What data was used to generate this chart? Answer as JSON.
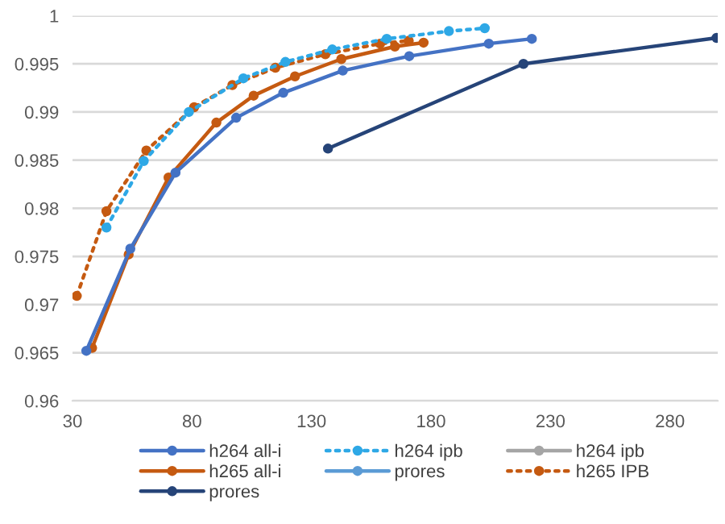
{
  "chart_data": {
    "type": "line",
    "xlim": [
      30,
      300
    ],
    "xticks": [
      30,
      80,
      130,
      180,
      230,
      280
    ],
    "ylim": [
      0.96,
      1
    ],
    "yticks": [
      0.96,
      0.965,
      0.97,
      0.975,
      0.98,
      0.985,
      0.99,
      0.995,
      1
    ],
    "grid": "y",
    "legend": "bottom",
    "marker": "circle",
    "series": [
      {
        "name": "h264 all-i",
        "color": "#4472c4",
        "line_style": "solid",
        "x": [
          35.8,
          54.2,
          73.1,
          98.5,
          118.2,
          143.1,
          170.9,
          204.2,
          222.2
        ],
        "values": [
          0.9652,
          0.9758,
          0.9837,
          0.9894,
          0.992,
          0.9943,
          0.9958,
          0.9971,
          0.9976
        ]
      },
      {
        "name": "h264 ipb",
        "color": "#2ea8e6",
        "line_style": "dotted",
        "x": [
          44.2,
          59.8,
          78.7,
          101.5,
          119.1,
          138.7,
          161.5,
          187.5,
          202.5
        ],
        "values": [
          0.978,
          0.9849,
          0.99,
          0.9935,
          0.9952,
          0.9965,
          0.9976,
          0.9984,
          0.9987
        ]
      },
      {
        "name": "h264 ipb",
        "color": "#a5a5a5",
        "line_style": "solid"
      },
      {
        "name": "h265 all-i",
        "color": "#c55a11",
        "line_style": "solid",
        "x": [
          38.2,
          53.5,
          70.2,
          90.2,
          105.8,
          123.1,
          142.5,
          164.9,
          176.9
        ],
        "values": [
          0.9655,
          0.9752,
          0.9832,
          0.9889,
          0.9917,
          0.9937,
          0.9955,
          0.9968,
          0.9972
        ]
      },
      {
        "name": "prores",
        "color": "#5b9bd5",
        "line_style": "solid"
      },
      {
        "name": "h265 IPB",
        "color": "#c55a11",
        "line_style": "dotted",
        "x": [
          31.8,
          44.2,
          60.9,
          80.9,
          96.9,
          114.9,
          135.8,
          158.7,
          170.7
        ],
        "values": [
          0.9709,
          0.9797,
          0.986,
          0.9905,
          0.9928,
          0.9946,
          0.996,
          0.9971,
          0.9974
        ]
      },
      {
        "name": "prores",
        "color": "#264478",
        "line_style": "solid",
        "x": [
          136.9,
          218.7,
          299.5
        ],
        "values": [
          0.9862,
          0.995,
          0.9977
        ]
      }
    ]
  }
}
